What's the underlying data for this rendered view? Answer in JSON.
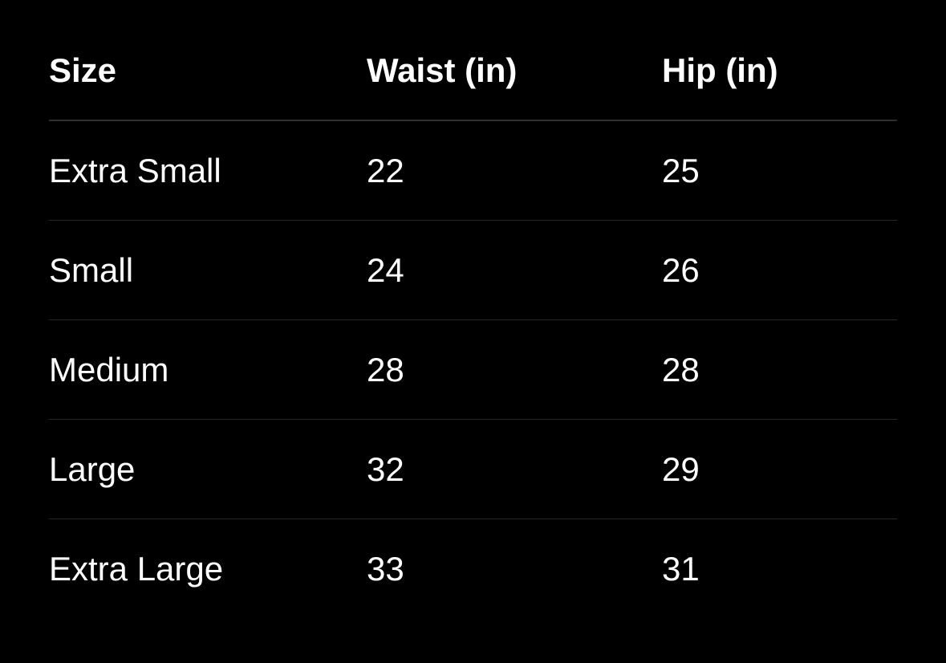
{
  "table": {
    "headers": [
      "Size",
      "Waist (in)",
      "Hip (in)"
    ],
    "rows": [
      [
        "Extra Small",
        "22",
        "25"
      ],
      [
        "Small",
        "24",
        "26"
      ],
      [
        "Medium",
        "28",
        "28"
      ],
      [
        "Large",
        "32",
        "29"
      ],
      [
        "Extra Large",
        "33",
        "31"
      ]
    ]
  }
}
